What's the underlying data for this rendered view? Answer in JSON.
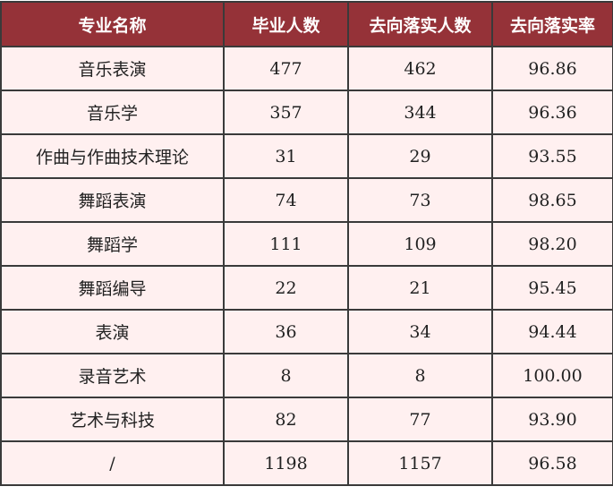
{
  "columns": [
    "专业名称",
    "毕业人数",
    "去向落实人数",
    "去向落实率"
  ],
  "rows": [
    [
      "音乐表演",
      "477",
      "462",
      "96.86"
    ],
    [
      "音乐学",
      "357",
      "344",
      "96.36"
    ],
    [
      "作曲与作曲技术理论",
      "31",
      "29",
      "93.55"
    ],
    [
      "舞蹈表演",
      "74",
      "73",
      "98.65"
    ],
    [
      "舞蹈学",
      "111",
      "109",
      "98.20"
    ],
    [
      "舞蹈编导",
      "22",
      "21",
      "95.45"
    ],
    [
      "表演",
      "36",
      "34",
      "94.44"
    ],
    [
      "录音艺术",
      "8",
      "8",
      "100.00"
    ],
    [
      "艺术与科技",
      "82",
      "77",
      "93.90"
    ],
    [
      "/",
      "1198",
      "1157",
      "96.58"
    ]
  ],
  "colors": {
    "header_bg": "#953238",
    "body_bg": "#fff0f0"
  }
}
